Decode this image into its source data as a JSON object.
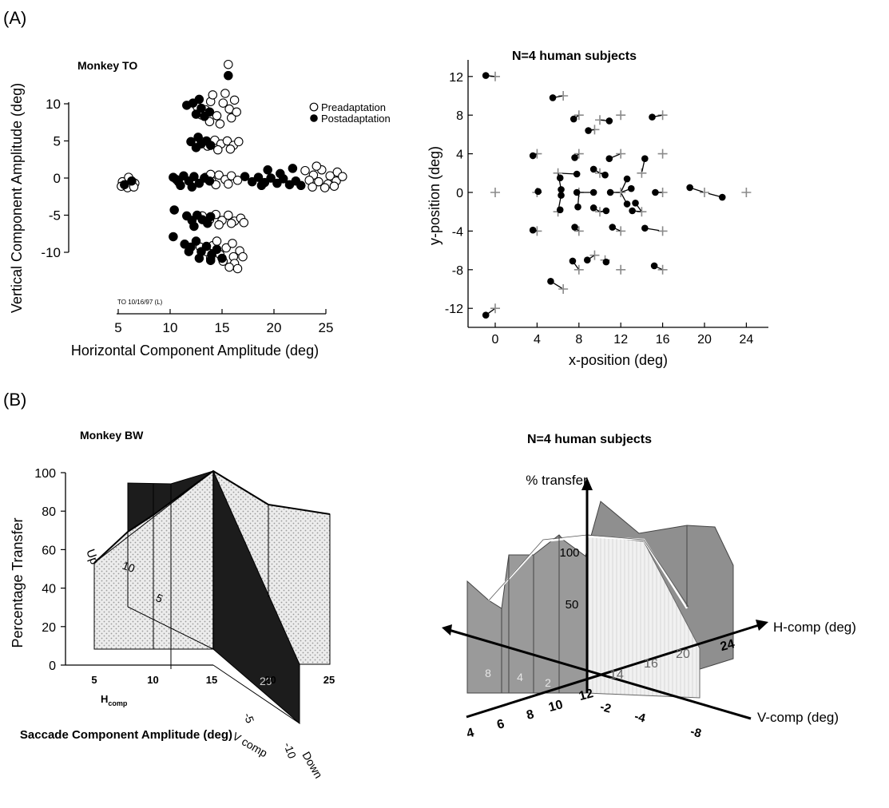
{
  "panels": {
    "a_label": "(A)",
    "b_label": "(B)"
  },
  "chart_data": [
    {
      "type": "scatter",
      "title": "Monkey TO",
      "xlabel": "Horizontal Component Amplitude (deg)",
      "ylabel": "Vertical Component Amplitude (deg)",
      "xlim": [
        4,
        27
      ],
      "ylim": [
        -12.5,
        15
      ],
      "xticks": [
        "5",
        "10",
        "15",
        "20",
        "25"
      ],
      "yticks": [
        "10",
        "5",
        "0",
        "-5",
        "-10"
      ],
      "footnote": "TO 10/16/97 (L)",
      "legend": {
        "placement": "top-right",
        "entries": [
          "Preadaptation",
          "Postadaptation"
        ]
      },
      "series": [
        {
          "name": "Preadaptation",
          "marker": "open-circle",
          "points": [
            [
              5.4,
              -0.5
            ],
            [
              5.8,
              -0.9
            ],
            [
              6.2,
              -0.3
            ],
            [
              5.9,
              -1.3
            ],
            [
              6.6,
              -0.7
            ],
            [
              5.3,
              -1.1
            ],
            [
              6.0,
              0.1
            ],
            [
              6.5,
              -1.2
            ],
            [
              12.6,
              9.6
            ],
            [
              13.4,
              9.2
            ],
            [
              13.9,
              10.3
            ],
            [
              14.5,
              8.4
            ],
            [
              15.1,
              10.1
            ],
            [
              15.7,
              9.3
            ],
            [
              16.2,
              10.5
            ],
            [
              13.8,
              7.6
            ],
            [
              14.8,
              7.3
            ],
            [
              15.9,
              8.1
            ],
            [
              14.1,
              11.2
            ],
            [
              15.3,
              11.4
            ],
            [
              13.0,
              8.5
            ],
            [
              16.4,
              8.9
            ],
            [
              13.0,
              4.9
            ],
            [
              13.6,
              4.3
            ],
            [
              14.3,
              5.1
            ],
            [
              14.9,
              4.6
            ],
            [
              15.5,
              5.0
            ],
            [
              16.1,
              4.4
            ],
            [
              16.6,
              4.9
            ],
            [
              14.6,
              3.8
            ],
            [
              15.8,
              3.9
            ],
            [
              13.4,
              0.1
            ],
            [
              14.0,
              -0.4
            ],
            [
              14.7,
              0.4
            ],
            [
              15.3,
              -0.2
            ],
            [
              15.9,
              0.3
            ],
            [
              16.5,
              -0.3
            ],
            [
              14.4,
              -0.9
            ],
            [
              15.6,
              -0.8
            ],
            [
              13.9,
              0.5
            ],
            [
              13.1,
              -5.1
            ],
            [
              13.8,
              -5.6
            ],
            [
              14.4,
              -4.9
            ],
            [
              15.0,
              -5.7
            ],
            [
              15.6,
              -5.0
            ],
            [
              16.2,
              -5.8
            ],
            [
              16.8,
              -5.4
            ],
            [
              14.7,
              -6.3
            ],
            [
              15.9,
              -6.1
            ],
            [
              17.1,
              -6.0
            ],
            [
              12.9,
              -9.3
            ],
            [
              13.5,
              -9.9
            ],
            [
              14.1,
              -9.1
            ],
            [
              14.8,
              -10.3
            ],
            [
              15.4,
              -9.4
            ],
            [
              16.1,
              -10.6
            ],
            [
              16.7,
              -9.8
            ],
            [
              15.1,
              -11.2
            ],
            [
              16.2,
              -11.5
            ],
            [
              13.9,
              -10.8
            ],
            [
              15.7,
              -12.0
            ],
            [
              16.5,
              -12.2
            ],
            [
              14.5,
              -8.5
            ],
            [
              16.0,
              -8.8
            ],
            [
              17.0,
              -10.6
            ],
            [
              15.6,
              15.3
            ],
            [
              23.0,
              1.0
            ],
            [
              23.8,
              0.4
            ],
            [
              24.6,
              1.1
            ],
            [
              25.4,
              0.3
            ],
            [
              26.1,
              0.8
            ],
            [
              23.4,
              -0.3
            ],
            [
              24.3,
              -0.5
            ],
            [
              25.2,
              -0.8
            ],
            [
              26.0,
              -0.4
            ],
            [
              23.7,
              -1.2
            ],
            [
              24.9,
              -1.3
            ],
            [
              25.8,
              -1.1
            ],
            [
              24.1,
              1.6
            ],
            [
              26.6,
              0.2
            ]
          ]
        },
        {
          "name": "Postadaptation",
          "marker": "filled-circle",
          "points": [
            [
              5.6,
              -0.9
            ],
            [
              6.3,
              -0.4
            ],
            [
              11.6,
              9.8
            ],
            [
              12.2,
              10.1
            ],
            [
              12.5,
              8.6
            ],
            [
              13.0,
              9.4
            ],
            [
              13.3,
              8.3
            ],
            [
              12.8,
              10.6
            ],
            [
              13.8,
              8.9
            ],
            [
              15.6,
              13.8
            ],
            [
              12.0,
              4.9
            ],
            [
              12.5,
              4.1
            ],
            [
              13.0,
              4.6
            ],
            [
              12.7,
              5.5
            ],
            [
              13.5,
              5.0
            ],
            [
              13.9,
              4.4
            ],
            [
              10.3,
              0.1
            ],
            [
              10.8,
              -0.5
            ],
            [
              11.3,
              0.3
            ],
            [
              11.8,
              -0.4
            ],
            [
              12.3,
              0.2
            ],
            [
              12.8,
              -0.7
            ],
            [
              13.3,
              0.0
            ],
            [
              11.0,
              -1.0
            ],
            [
              12.1,
              -1.2
            ],
            [
              13.8,
              -0.4
            ],
            [
              10.6,
              -0.2
            ],
            [
              11.6,
              -5.1
            ],
            [
              12.1,
              -5.7
            ],
            [
              12.6,
              -5.0
            ],
            [
              13.1,
              -5.6
            ],
            [
              13.6,
              -6.1
            ],
            [
              12.3,
              -6.5
            ],
            [
              13.9,
              -5.2
            ],
            [
              11.4,
              -8.9
            ],
            [
              12.0,
              -9.3
            ],
            [
              12.5,
              -8.5
            ],
            [
              13.0,
              -9.9
            ],
            [
              13.5,
              -9.2
            ],
            [
              14.0,
              -10.3
            ],
            [
              14.5,
              -9.6
            ],
            [
              12.8,
              -10.8
            ],
            [
              13.9,
              -11.1
            ],
            [
              15.0,
              -10.8
            ],
            [
              11.8,
              -9.9
            ],
            [
              10.4,
              -4.3
            ],
            [
              10.3,
              -7.9
            ],
            [
              17.2,
              0.2
            ],
            [
              17.9,
              -0.5
            ],
            [
              18.5,
              0.1
            ],
            [
              19.1,
              -0.6
            ],
            [
              19.7,
              0.0
            ],
            [
              20.3,
              -0.7
            ],
            [
              20.9,
              -0.1
            ],
            [
              21.5,
              -0.9
            ],
            [
              22.1,
              -0.4
            ],
            [
              22.6,
              -1.0
            ],
            [
              18.8,
              -1.0
            ],
            [
              20.6,
              0.6
            ],
            [
              21.8,
              1.3
            ],
            [
              19.4,
              1.1
            ]
          ]
        }
      ]
    },
    {
      "type": "scatter",
      "title": "N=4 human subjects",
      "xlabel": "x-position (deg)",
      "ylabel": "y-position (deg)",
      "xlim": [
        -2,
        26
      ],
      "ylim": [
        -13.5,
        13.5
      ],
      "xticks": [
        "0",
        "4",
        "8",
        "12",
        "16",
        "20",
        "24"
      ],
      "yticks": [
        "12",
        "8",
        "4",
        "0",
        "-4",
        "-8",
        "-12"
      ],
      "series": [
        {
          "name": "",
          "marker": "plus",
          "points": [
            [
              0,
              12
            ],
            [
              0,
              -12
            ],
            [
              0,
              0
            ],
            [
              4,
              4
            ],
            [
              4,
              -4
            ],
            [
              4,
              0
            ],
            [
              6.5,
              10
            ],
            [
              6.5,
              -10
            ],
            [
              6,
              2
            ],
            [
              6,
              -2
            ],
            [
              8,
              0
            ],
            [
              12,
              0
            ],
            [
              16,
              0
            ],
            [
              20,
              0
            ],
            [
              24,
              0
            ],
            [
              8,
              8
            ],
            [
              12,
              8
            ],
            [
              16,
              8
            ],
            [
              8,
              -8
            ],
            [
              12,
              -8
            ],
            [
              16,
              -8
            ],
            [
              8,
              4
            ],
            [
              12,
              4
            ],
            [
              16,
              4
            ],
            [
              8,
              -4
            ],
            [
              12,
              -4
            ],
            [
              16,
              -4
            ],
            [
              10,
              2
            ],
            [
              14,
              2
            ],
            [
              10,
              -2
            ],
            [
              14,
              -2
            ],
            [
              9.5,
              6.5
            ],
            [
              9.5,
              -6.5
            ],
            [
              10,
              7.5
            ],
            [
              10.5,
              -7
            ]
          ]
        },
        {
          "name": "",
          "marker": "filled-circle-with-tail",
          "points": [
            [
              -0.9,
              12.1
            ],
            [
              -0.9,
              -12.7
            ],
            [
              3.6,
              -3.9
            ],
            [
              3.6,
              3.8
            ],
            [
              4.1,
              0.1
            ],
            [
              5.5,
              9.8
            ],
            [
              5.3,
              -9.2
            ],
            [
              6.2,
              1.5
            ],
            [
              6.3,
              -0.3
            ],
            [
              6.3,
              0.3
            ],
            [
              6.2,
              -1.8
            ],
            [
              7.5,
              7.6
            ],
            [
              7.6,
              3.6
            ],
            [
              7.6,
              -3.6
            ],
            [
              7.4,
              -7.1
            ],
            [
              8.9,
              6.4
            ],
            [
              7.8,
              1.9
            ],
            [
              7.8,
              0.0
            ],
            [
              7.9,
              -1.5
            ],
            [
              8.8,
              -7.0
            ],
            [
              9.4,
              2.4
            ],
            [
              9.4,
              -1.6
            ],
            [
              9.4,
              0.0
            ],
            [
              10.5,
              1.8
            ],
            [
              10.6,
              -1.9
            ],
            [
              10.9,
              3.5
            ],
            [
              10.9,
              7.4
            ],
            [
              10.6,
              -7.2
            ],
            [
              11.0,
              0.0
            ],
            [
              12.6,
              1.4
            ],
            [
              12.6,
              -1.2
            ],
            [
              13.0,
              0.4
            ],
            [
              13.1,
              -1.9
            ],
            [
              11.2,
              -3.6
            ],
            [
              13.4,
              -1.1
            ],
            [
              14.3,
              3.5
            ],
            [
              14.3,
              -3.7
            ],
            [
              15.0,
              7.8
            ],
            [
              15.2,
              -7.6
            ],
            [
              15.3,
              0.0
            ],
            [
              18.6,
              0.5
            ],
            [
              21.7,
              -0.5
            ]
          ]
        }
      ]
    },
    {
      "type": "area",
      "subtype": "3d-surface",
      "title": "Monkey BW",
      "ylabel": "Percentage Transfer",
      "xlabel": "Saccade Component Amplitude (deg)",
      "x_axis_label": "H",
      "x_axis_label_sub": "comp",
      "depth_axis_label": "V comp",
      "depth_axis_end_label": "Down",
      "up_label": "Up",
      "yticks": [
        "0",
        "20",
        "40",
        "60",
        "80",
        "100"
      ],
      "xticks": [
        "5",
        "10",
        "15",
        "20",
        "25"
      ],
      "depth_ticks": [
        "-5",
        "-10"
      ],
      "surface_labels": [
        "10",
        "5",
        "20"
      ],
      "edge_profile": {
        "x": [
          5,
          10,
          15,
          20,
          25
        ],
        "values": [
          30,
          65,
          100,
          82,
          77
        ]
      }
    },
    {
      "type": "area",
      "subtype": "3d-surface",
      "title": "N=4 human subjects",
      "zlabel": "% transfer",
      "xlabel": "H-comp (deg)",
      "depthlabel": "V-comp (deg)",
      "z_ticks": [
        "50",
        "100"
      ],
      "h_ticks": [
        "4",
        "6",
        "8",
        "10",
        "12",
        "14",
        "16",
        "20",
        "24"
      ],
      "v_ticks": [
        "-2",
        "-4",
        "-8"
      ],
      "left_face_ticks": [
        "8",
        "4",
        "2"
      ]
    }
  ]
}
